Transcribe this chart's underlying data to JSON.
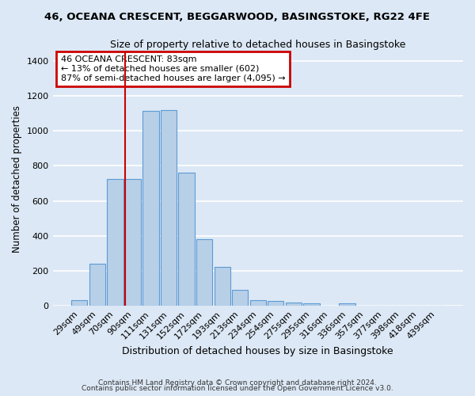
{
  "title": "46, OCEANA CRESCENT, BEGGARWOOD, BASINGSTOKE, RG22 4FE",
  "subtitle": "Size of property relative to detached houses in Basingstoke",
  "xlabel": "Distribution of detached houses by size in Basingstoke",
  "ylabel": "Number of detached properties",
  "categories": [
    "29sqm",
    "49sqm",
    "70sqm",
    "90sqm",
    "111sqm",
    "131sqm",
    "152sqm",
    "172sqm",
    "193sqm",
    "213sqm",
    "234sqm",
    "254sqm",
    "275sqm",
    "295sqm",
    "316sqm",
    "336sqm",
    "357sqm",
    "377sqm",
    "398sqm",
    "418sqm",
    "439sqm"
  ],
  "values": [
    35,
    240,
    725,
    725,
    1115,
    1120,
    760,
    380,
    225,
    90,
    35,
    27,
    20,
    13,
    0,
    15,
    0,
    0,
    0,
    0,
    0
  ],
  "bar_color": "#b8cfe8",
  "bar_edge_color": "#5b9bd5",
  "background_color": "#dce8f5",
  "grid_color": "#ffffff",
  "annotation_box_text": "46 OCEANA CRESCENT: 83sqm\n← 13% of detached houses are smaller (602)\n87% of semi-detached houses are larger (4,095) →",
  "ylim": [
    0,
    1450
  ],
  "yticks": [
    0,
    200,
    400,
    600,
    800,
    1000,
    1200,
    1400
  ],
  "footer_line1": "Contains HM Land Registry data © Crown copyright and database right 2024.",
  "footer_line2": "Contains public sector information licensed under the Open Government Licence v3.0."
}
